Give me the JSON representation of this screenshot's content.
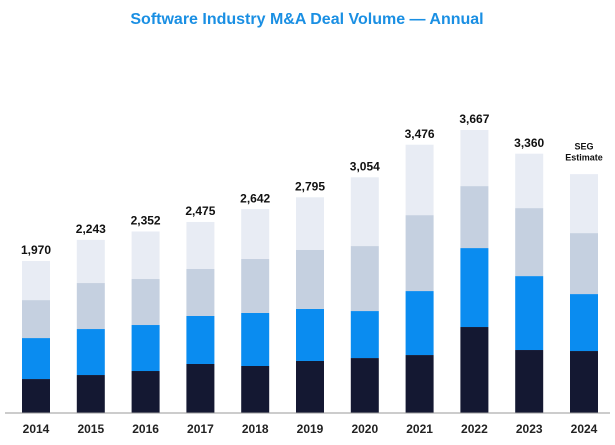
{
  "chart_data": {
    "type": "stacked_bar",
    "title": "Software Industry M&A Deal Volume — Annual",
    "categories": [
      "2014",
      "2015",
      "2016",
      "2017",
      "2018",
      "2019",
      "2020",
      "2021",
      "2022",
      "2023",
      "2024"
    ],
    "series": [
      {
        "color": "#141832",
        "values": [
          440,
          492,
          544,
          635,
          609,
          674,
          712,
          751,
          1114,
          816,
          803
        ]
      },
      {
        "color": "#0a8cf0",
        "values": [
          531,
          596,
          596,
          622,
          687,
          674,
          609,
          829,
          1023,
          958,
          738
        ]
      },
      {
        "color": "#c5d0e0",
        "values": [
          492,
          596,
          596,
          609,
          700,
          764,
          842,
          984,
          803,
          881,
          790
        ]
      },
      {
        "color": "#e8ecf4",
        "values": [
          507,
          559,
          616,
          609,
          646,
          683,
          891,
          912,
          727,
          705,
          764
        ]
      }
    ],
    "totals": [
      1970,
      2243,
      2352,
      2475,
      2642,
      2795,
      3054,
      3476,
      3667,
      3360,
      null
    ],
    "total_labels": [
      "1,970",
      "2,243",
      "2,352",
      "2,475",
      "2,642",
      "2,795",
      "3,054",
      "3,476",
      "3,667",
      "3,360",
      null
    ],
    "annotation": [
      "SEG",
      "Estimate"
    ],
    "ylim": [
      0,
      3900
    ]
  }
}
